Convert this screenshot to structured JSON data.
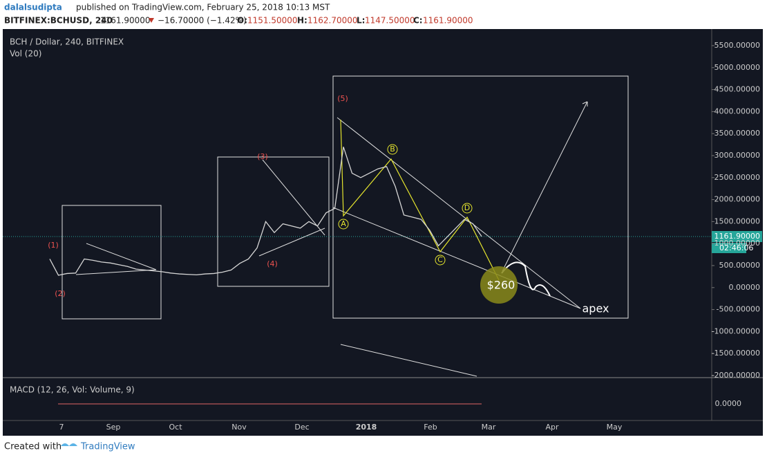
{
  "header": {
    "author": "dalalsudipta",
    "published": "published on TradingView.com, February 25, 2018 10:13 MST",
    "symbol": "BITFINEX:BCHUSD, 240",
    "last": "1161.90000",
    "change": "−16.70000 (−1.42%)",
    "o_label": "O:",
    "o": "1151.50000",
    "h_label": "H:",
    "h": "1162.70000",
    "l_label": "L:",
    "l": "1147.50000",
    "c_label": "C:",
    "c": "1161.90000"
  },
  "chart_data": {
    "type": "line",
    "title": "BCH / Dollar, 240, BITFINEX",
    "subtitle": "Vol (20)",
    "color": "#d6d6d6",
    "values": [
      650,
      280,
      320,
      330,
      650,
      620,
      580,
      560,
      520,
      480,
      420,
      400,
      380,
      360,
      330,
      310,
      300,
      290,
      310,
      320,
      350,
      400,
      550,
      650,
      900,
      1500,
      1250,
      1450,
      1400,
      1350,
      1500,
      1400,
      1700,
      1800,
      3200,
      2600,
      2500,
      2600,
      2700,
      2750,
      2300,
      1650,
      1600,
      1550,
      1300,
      950,
      1150,
      1350,
      1550,
      1450,
      1161.9
    ],
    "ylim": [
      -2000,
      5500
    ],
    "yticks": [
      {
        "value": 5500,
        "label": "5500.00000"
      },
      {
        "value": 5000,
        "label": "5000.00000"
      },
      {
        "value": 4500,
        "label": "4500.00000"
      },
      {
        "value": 4000,
        "label": "4000.00000"
      },
      {
        "value": 3500,
        "label": "3500.00000"
      },
      {
        "value": 3000,
        "label": "3000.00000"
      },
      {
        "value": 2500,
        "label": "2500.00000"
      },
      {
        "value": 2000,
        "label": "2000.00000"
      },
      {
        "value": 1500,
        "label": "1500.00000"
      },
      {
        "value": 1000,
        "label": "1000.00000"
      },
      {
        "value": 500,
        "label": "500.00000"
      },
      {
        "value": 0,
        "label": "0.00000"
      },
      {
        "value": -500,
        "label": "-500.00000"
      },
      {
        "value": -1000,
        "label": "-1000.00000"
      },
      {
        "value": -1500,
        "label": "-1500.00000"
      },
      {
        "value": -2000,
        "label": "-2000.00000"
      }
    ],
    "price_tag": {
      "value": 1161.9,
      "label": "1161.90000",
      "countdown": "02:46:06"
    },
    "time_axis": [
      "7",
      "Sep",
      "Oct",
      "Nov",
      "Dec",
      "2018",
      "Feb",
      "Mar",
      "Apr",
      "May"
    ],
    "macd": {
      "title": "MACD (12, 26, Vol: Volume, 9)",
      "ticks": [
        {
          "value": 0,
          "label": "0.0000"
        }
      ]
    },
    "annotations": {
      "w1": "(1)",
      "w2": "(2)",
      "w3": "(3)",
      "w4": "(4)",
      "w5": "(5)",
      "a": "A",
      "b": "B",
      "c": "C",
      "d": "D",
      "target": "$260",
      "apex": "apex"
    }
  },
  "footer": {
    "created": "Created with",
    "brand": "TradingView"
  }
}
